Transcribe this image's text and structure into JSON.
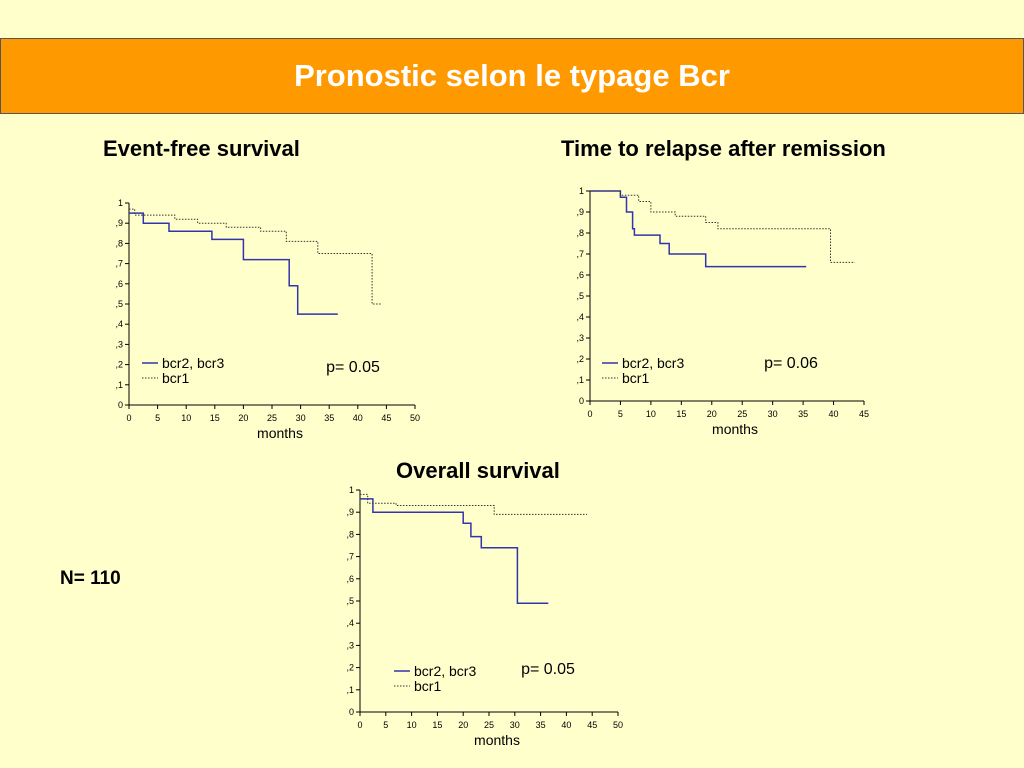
{
  "slide": {
    "title": "Pronostic selon le typage Bcr",
    "n_label": "N= 110"
  },
  "chart_data": [
    {
      "type": "line",
      "title": "Event-free survival",
      "xlabel": "months",
      "ylabel": "",
      "xlim": [
        0,
        50
      ],
      "ylim": [
        0,
        1
      ],
      "x_ticks": [
        "0",
        "5",
        "10",
        "15",
        "20",
        "25",
        "30",
        "35",
        "40",
        "45",
        "50"
      ],
      "y_ticks": [
        "0",
        ",1",
        ",2",
        ",3",
        ",4",
        ",5",
        ",6",
        ",7",
        ",8",
        ",9",
        "1"
      ],
      "annotation": "p= 0.05",
      "step": true,
      "legend": "bottom-left",
      "series": [
        {
          "name": "bcr2, bcr3",
          "style": "solid",
          "color": "#3333aa",
          "x": [
            0,
            2.5,
            2.5,
            7,
            7,
            14.5,
            14.5,
            20,
            20,
            28,
            28,
            29.5,
            29.5,
            36.5
          ],
          "y": [
            0.95,
            0.95,
            0.9,
            0.9,
            0.86,
            0.86,
            0.82,
            0.82,
            0.72,
            0.72,
            0.59,
            0.59,
            0.45,
            0.45
          ]
        },
        {
          "name": "bcr1",
          "style": "dotted",
          "color": "#333333",
          "x": [
            0,
            1,
            1,
            8,
            8,
            12,
            12,
            17,
            17,
            23,
            23,
            27.5,
            27.5,
            33,
            33,
            42.5,
            42.5,
            44
          ],
          "y": [
            0.97,
            0.97,
            0.94,
            0.94,
            0.92,
            0.92,
            0.9,
            0.9,
            0.88,
            0.88,
            0.86,
            0.86,
            0.81,
            0.81,
            0.75,
            0.75,
            0.5,
            0.5
          ]
        }
      ]
    },
    {
      "type": "line",
      "title": "Time to relapse after remission",
      "xlabel": "months",
      "ylabel": "",
      "xlim": [
        0,
        45
      ],
      "ylim": [
        0,
        1
      ],
      "x_ticks": [
        "0",
        "5",
        "10",
        "15",
        "20",
        "25",
        "30",
        "35",
        "40",
        "45"
      ],
      "y_ticks": [
        "0",
        ",1",
        ",2",
        ",3",
        ",4",
        ",5",
        ",6",
        ",7",
        ",8",
        ",9",
        "1"
      ],
      "annotation": "p= 0.06",
      "step": true,
      "legend": "bottom-left",
      "series": [
        {
          "name": "bcr2, bcr3",
          "style": "solid",
          "color": "#3333aa",
          "x": [
            0,
            5,
            5,
            6,
            6,
            7,
            7,
            7.3,
            7.3,
            11.5,
            11.5,
            13,
            13,
            19,
            19,
            35.5
          ],
          "y": [
            1.0,
            1.0,
            0.97,
            0.97,
            0.9,
            0.9,
            0.82,
            0.82,
            0.79,
            0.79,
            0.75,
            0.75,
            0.7,
            0.7,
            0.64,
            0.64
          ]
        },
        {
          "name": "bcr1",
          "style": "dotted",
          "color": "#333333",
          "x": [
            0,
            5,
            5,
            8,
            8,
            10,
            10,
            14,
            14,
            19,
            19,
            21,
            21,
            39.5,
            39.5,
            43.5
          ],
          "y": [
            1.0,
            1.0,
            0.98,
            0.98,
            0.95,
            0.95,
            0.9,
            0.9,
            0.88,
            0.88,
            0.85,
            0.85,
            0.82,
            0.82,
            0.66,
            0.66
          ]
        }
      ]
    },
    {
      "type": "line",
      "title": "Overall survival",
      "xlabel": "months",
      "ylabel": "",
      "xlim": [
        0,
        50
      ],
      "ylim": [
        0,
        1
      ],
      "x_ticks": [
        "0",
        "5",
        "10",
        "15",
        "20",
        "25",
        "30",
        "35",
        "40",
        "45",
        "50"
      ],
      "y_ticks": [
        "0",
        ",1",
        ",2",
        ",3",
        ",4",
        ",5",
        ",6",
        ",7",
        ",8",
        ",9",
        "1"
      ],
      "annotation": "p= 0.05",
      "step": true,
      "legend": "bottom-left",
      "series": [
        {
          "name": "bcr2, bcr3",
          "style": "solid",
          "color": "#3333aa",
          "x": [
            0,
            2.5,
            2.5,
            20,
            20,
            21.5,
            21.5,
            23.5,
            23.5,
            30.5,
            30.5,
            36.5
          ],
          "y": [
            0.96,
            0.96,
            0.9,
            0.9,
            0.85,
            0.85,
            0.79,
            0.79,
            0.74,
            0.74,
            0.49,
            0.49
          ]
        },
        {
          "name": "bcr1",
          "style": "dotted",
          "color": "#333333",
          "x": [
            0,
            1.5,
            1.5,
            7,
            7,
            26,
            26,
            44
          ],
          "y": [
            0.98,
            0.98,
            0.94,
            0.94,
            0.93,
            0.93,
            0.89,
            0.89
          ]
        }
      ]
    }
  ]
}
